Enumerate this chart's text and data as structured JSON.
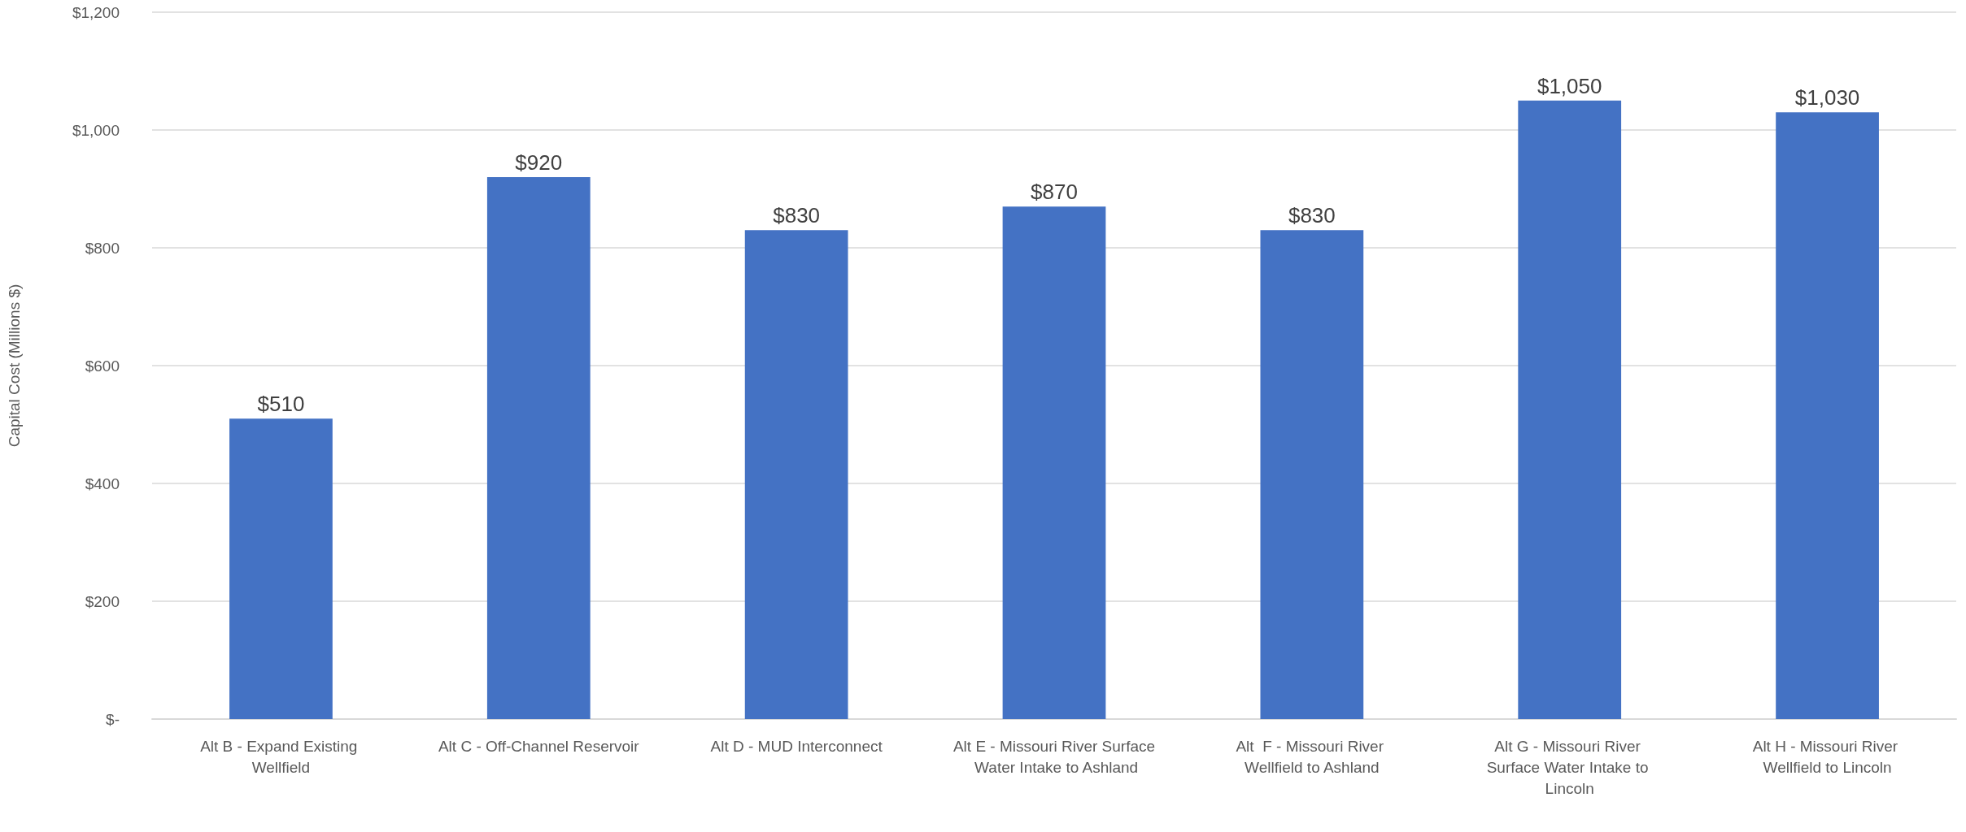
{
  "chart_data": {
    "type": "bar",
    "ylabel": "Capital Cost (Millions $)",
    "categories": [
      "Alt B - Expand Existing Wellfield",
      "Alt C - Off-Channel Reservoir",
      "Alt D - MUD Interconnect",
      "Alt E - Missouri River Surface Water Intake to Ashland",
      "Alt  F - Missouri River Wellfield to Ashland",
      "Alt G - Missouri River Surface Water Intake to Lincoln",
      "Alt H - Missouri River Wellfield to Lincoln"
    ],
    "values": [
      510,
      920,
      830,
      870,
      830,
      1050,
      1030
    ],
    "value_labels": [
      "$510",
      "$920",
      "$830",
      "$870",
      "$830",
      "$1,050",
      "$1,030"
    ],
    "color": "#4472c4",
    "ylim": [
      0,
      1200
    ],
    "yticks": [
      {
        "value": 0,
        "label": "$-"
      },
      {
        "value": 200,
        "label": "$200"
      },
      {
        "value": 400,
        "label": "$400"
      },
      {
        "value": 600,
        "label": "$600"
      },
      {
        "value": 800,
        "label": "$800"
      },
      {
        "value": 1000,
        "label": "$1,000"
      },
      {
        "value": 1200,
        "label": "$1,200"
      }
    ],
    "grid": "y"
  }
}
